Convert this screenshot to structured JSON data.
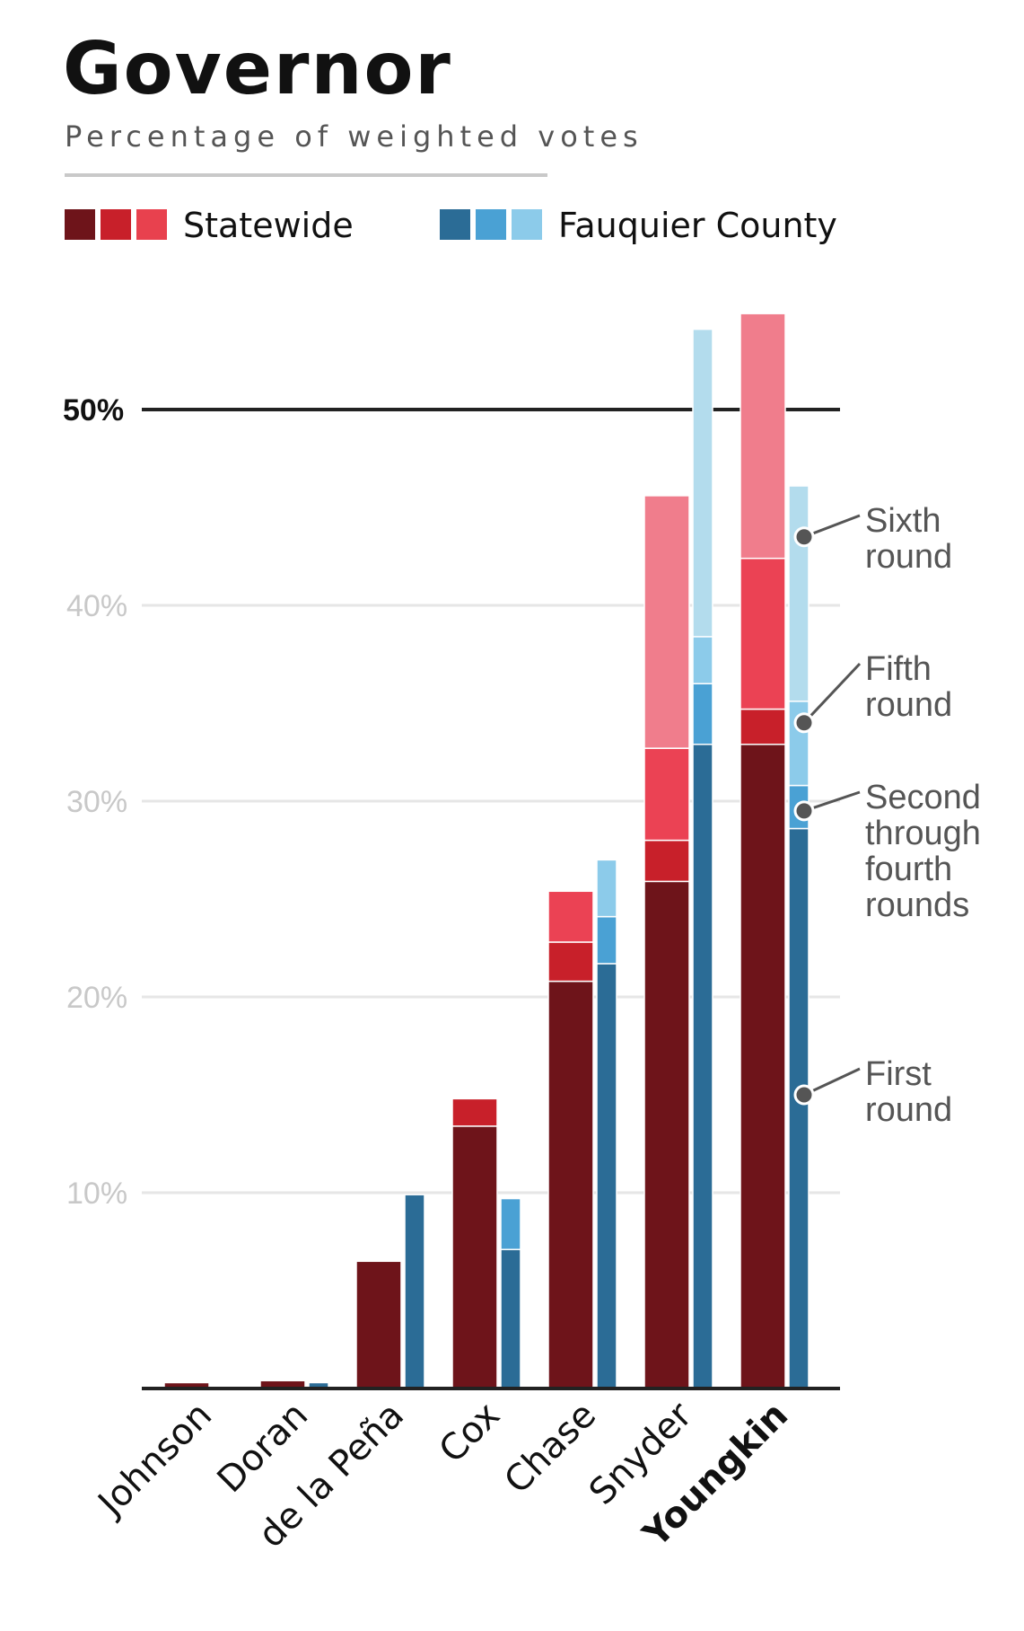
{
  "title": "Governor",
  "subtitle": "Percentage of weighted votes",
  "legend": [
    {
      "label": "Statewide",
      "colors": [
        "#6e141a",
        "#c8202a",
        "#e8414e"
      ]
    },
    {
      "label": "Fauquier County",
      "colors": [
        "#2b6c96",
        "#4aa1d4",
        "#8ccbea"
      ]
    }
  ],
  "annotations": [
    {
      "lines": [
        "Sixth",
        "round"
      ],
      "value": 43.5
    },
    {
      "lines": [
        "Fifth",
        "round"
      ],
      "value": 34.0
    },
    {
      "lines": [
        "Second",
        "through",
        "fourth",
        "rounds"
      ],
      "value": 29.5
    },
    {
      "lines": [
        "First",
        "round"
      ],
      "value": 15.0
    }
  ],
  "chart_data": {
    "type": "bar",
    "stacked": true,
    "title": "Governor",
    "subtitle": "Percentage of weighted votes",
    "ylim": [
      0,
      55
    ],
    "yticks": [
      {
        "value": 10,
        "label": "10%"
      },
      {
        "value": 20,
        "label": "20%"
      },
      {
        "value": 30,
        "label": "30%"
      },
      {
        "value": 40,
        "label": "40%"
      },
      {
        "value": 50,
        "label": "50%",
        "major": true
      }
    ],
    "categories": [
      "Johnson",
      "Doran",
      "de la Peña",
      "Cox",
      "Chase",
      "Snyder",
      "Youngkin"
    ],
    "highlight": "Youngkin",
    "round_labels": [
      "First round",
      "Second through fourth rounds",
      "Fifth round",
      "Sixth round"
    ],
    "series": [
      {
        "name": "Statewide",
        "colors": [
          "#6e141a",
          "#c8202a",
          "#eb4254",
          "#f07d8c"
        ],
        "values": [
          [
            0.3
          ],
          [
            0.4
          ],
          [
            6.5
          ],
          [
            13.4,
            1.4
          ],
          [
            20.8,
            2.0,
            2.6
          ],
          [
            25.9,
            2.1,
            4.7,
            12.9
          ],
          [
            32.9,
            1.8,
            7.7,
            12.5
          ]
        ]
      },
      {
        "name": "Fauquier County",
        "colors": [
          "#2b6c96",
          "#4aa1d4",
          "#8ccbea",
          "#b3dced"
        ],
        "values": [
          [
            0
          ],
          [
            0.3
          ],
          [
            9.9
          ],
          [
            7.1,
            2.6
          ],
          [
            21.7,
            2.4,
            2.9
          ],
          [
            32.9,
            3.1,
            2.4,
            15.7
          ],
          [
            28.6,
            2.2,
            4.3,
            11.0
          ]
        ]
      }
    ]
  }
}
